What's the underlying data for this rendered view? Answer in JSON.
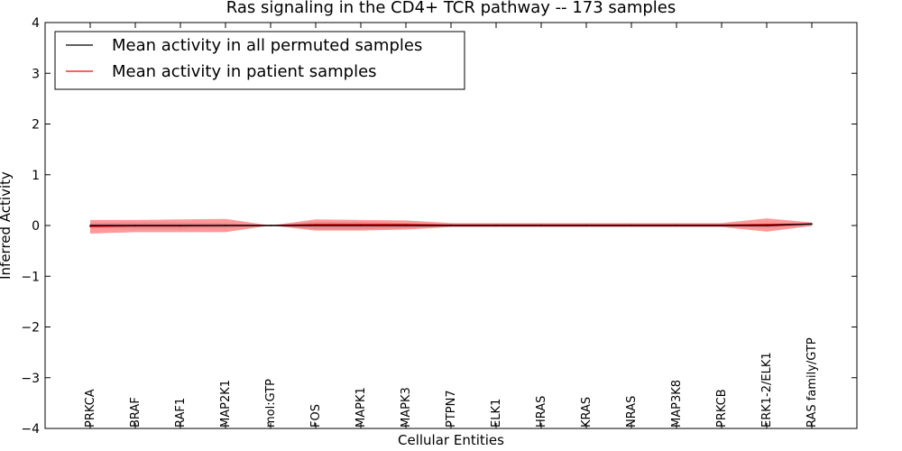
{
  "chart_data": {
    "type": "line",
    "title": "Ras signaling in the CD4+ TCR pathway -- 173 samples",
    "xlabel": "Cellular Entities",
    "ylabel": "Inferred Activity",
    "ylim": [
      -4,
      4
    ],
    "yticks": [
      4,
      3,
      2,
      1,
      0,
      -1,
      -2,
      -3,
      -4
    ],
    "ytick_labels": [
      "4",
      "3",
      "2",
      "1",
      "0",
      "−1",
      "−2",
      "−3",
      "−4"
    ],
    "categories": [
      "PRKCA",
      "BRAF",
      "RAF1",
      "MAP2K1",
      "mol:GTP",
      "FOS",
      "MAPK1",
      "MAPK3",
      "PTPN7",
      "ELK1",
      "HRAS",
      "KRAS",
      "NRAS",
      "MAP3K8",
      "PRKCB",
      "ERK1-2/ELK1",
      "RAS family/GTP"
    ],
    "legend_position": "top-left",
    "series": [
      {
        "name": "Mean activity in all permuted samples",
        "color": "#000000",
        "values": [
          0.0,
          0.0,
          0.0,
          0.0,
          0.0,
          0.0,
          0.0,
          0.0,
          0.0,
          0.0,
          0.0,
          0.0,
          0.0,
          0.0,
          0.0,
          0.0,
          0.03
        ],
        "lower": [
          -0.05,
          -0.06,
          -0.06,
          -0.05,
          0.0,
          -0.07,
          -0.07,
          -0.05,
          -0.02,
          -0.02,
          -0.02,
          -0.02,
          -0.02,
          -0.02,
          -0.02,
          -0.04,
          -0.01
        ],
        "upper": [
          0.05,
          0.06,
          0.06,
          0.05,
          0.0,
          0.07,
          0.07,
          0.05,
          0.02,
          0.02,
          0.02,
          0.02,
          0.02,
          0.02,
          0.02,
          0.04,
          0.05
        ],
        "band_color": "#b0b0c8"
      },
      {
        "name": "Mean activity in patient samples",
        "color": "#ff0000",
        "values": [
          -0.02,
          -0.01,
          -0.01,
          0.0,
          0.0,
          0.02,
          0.02,
          0.02,
          0.01,
          0.01,
          0.01,
          0.01,
          0.01,
          0.01,
          0.01,
          0.02,
          0.03
        ],
        "lower": [
          -0.16,
          -0.13,
          -0.13,
          -0.13,
          0.0,
          -0.1,
          -0.1,
          -0.08,
          -0.03,
          -0.03,
          -0.03,
          -0.03,
          -0.03,
          -0.03,
          -0.03,
          -0.12,
          -0.01
        ],
        "upper": [
          0.11,
          0.11,
          0.12,
          0.13,
          0.0,
          0.12,
          0.11,
          0.1,
          0.05,
          0.05,
          0.05,
          0.05,
          0.05,
          0.05,
          0.05,
          0.14,
          0.06
        ],
        "band_color": "#ff0000"
      }
    ]
  }
}
